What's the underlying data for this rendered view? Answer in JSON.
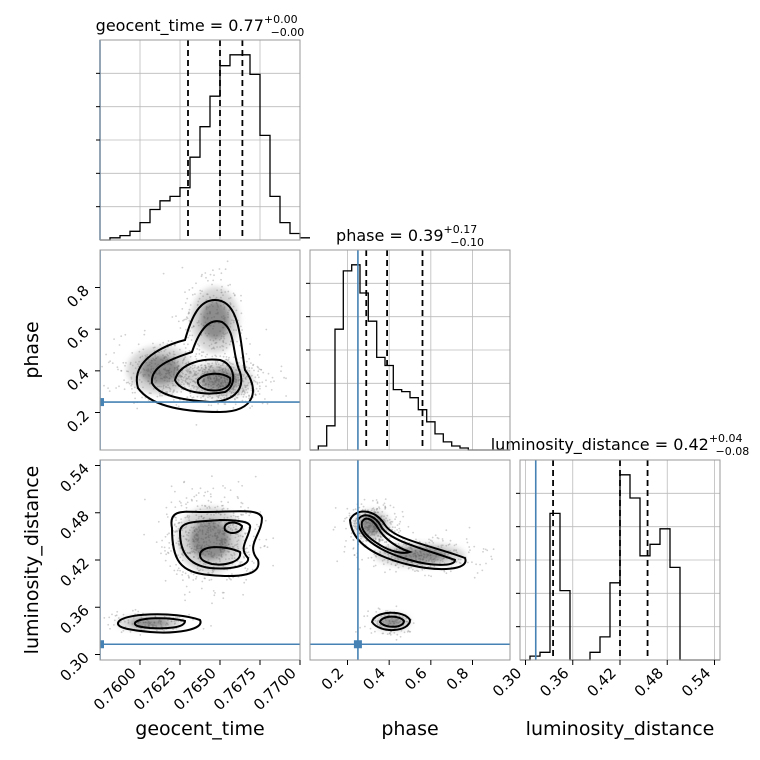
{
  "chart_data": {
    "type": "corner",
    "parameters": [
      "geocent_time",
      "phase",
      "luminosity_distance"
    ],
    "truths": {
      "geocent_time": 0.7575,
      "phase": 0.25,
      "luminosity_distance": 0.313
    },
    "accent_color": "#4682b4",
    "titles": [
      {
        "name": "geocent_time",
        "median": "0.77",
        "plus": "+0.00",
        "minus": "−0.00"
      },
      {
        "name": "phase",
        "median": "0.39",
        "plus": "+0.17",
        "minus": "−0.10"
      },
      {
        "name": "luminosity_distance",
        "median": "0.42",
        "plus": "+0.04",
        "minus": "−0.08"
      }
    ],
    "axes": {
      "geocent_time": {
        "range": [
          0.7575,
          0.77
        ],
        "ticks": [
          "0.7600",
          "0.7625",
          "0.7650",
          "0.7675",
          "0.7700"
        ]
      },
      "phase": {
        "range": [
          0.02,
          0.98
        ],
        "ticks": [
          "0.2",
          "0.4",
          "0.6",
          "0.8"
        ]
      },
      "luminosity_distance": {
        "range": [
          0.293,
          0.547
        ],
        "ticks": [
          "0.30",
          "0.36",
          "0.42",
          "0.48",
          "0.54"
        ]
      }
    },
    "histograms": {
      "geocent_time": {
        "edges_start": 0.7575,
        "bin_width": 0.000625,
        "counts": [
          0,
          1,
          2,
          4,
          8,
          14,
          18,
          20,
          24,
          38,
          52,
          66,
          80,
          85,
          85,
          76,
          48,
          20,
          8,
          3,
          1
        ],
        "quantiles": [
          0.763,
          0.765,
          0.7664
        ]
      },
      "phase": {
        "edges_start": 0.02,
        "bin_width": 0.04,
        "counts": [
          0,
          2,
          12,
          60,
          89,
          92,
          78,
          64,
          46,
          42,
          30,
          29,
          26,
          20,
          14,
          8,
          4,
          2,
          1,
          0,
          0,
          0,
          0,
          0
        ],
        "quantiles": [
          0.29,
          0.39,
          0.56
        ]
      },
      "luminosity_distance": {
        "edges_start": 0.293,
        "bin_width": 0.0127,
        "counts": [
          0,
          1,
          2,
          38,
          18,
          0,
          0,
          2,
          6,
          20,
          48,
          42,
          27,
          30,
          34,
          24,
          0,
          0,
          0,
          0
        ],
        "quantiles": [
          0.335,
          0.42,
          0.455
        ]
      }
    }
  }
}
